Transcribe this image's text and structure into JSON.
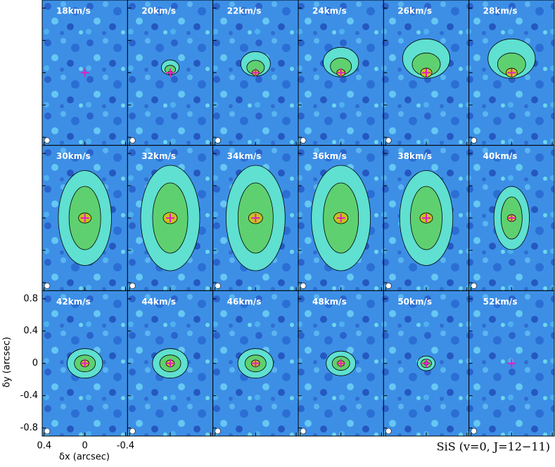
{
  "chart_data": {
    "type": "channel-map",
    "panels": [
      "18km/s",
      "20km/s",
      "22km/s",
      "24km/s",
      "26km/s",
      "28km/s",
      "30km/s",
      "32km/s",
      "34km/s",
      "36km/s",
      "38km/s",
      "40km/s",
      "42km/s",
      "44km/s",
      "46km/s",
      "48km/s",
      "50km/s",
      "52km/s"
    ],
    "xlabel": "δx (arcsec)",
    "ylabel": "δy (arcsec)",
    "xlim": [
      0.42,
      -0.42
    ],
    "xticks": [
      0.4,
      0,
      -0.4
    ],
    "ylim": [
      -0.9,
      0.9
    ],
    "yticks": [
      0.8,
      0.4,
      0,
      -0.4,
      -0.8
    ],
    "caption": "SiS (v=0, J=12−11)"
  }
}
